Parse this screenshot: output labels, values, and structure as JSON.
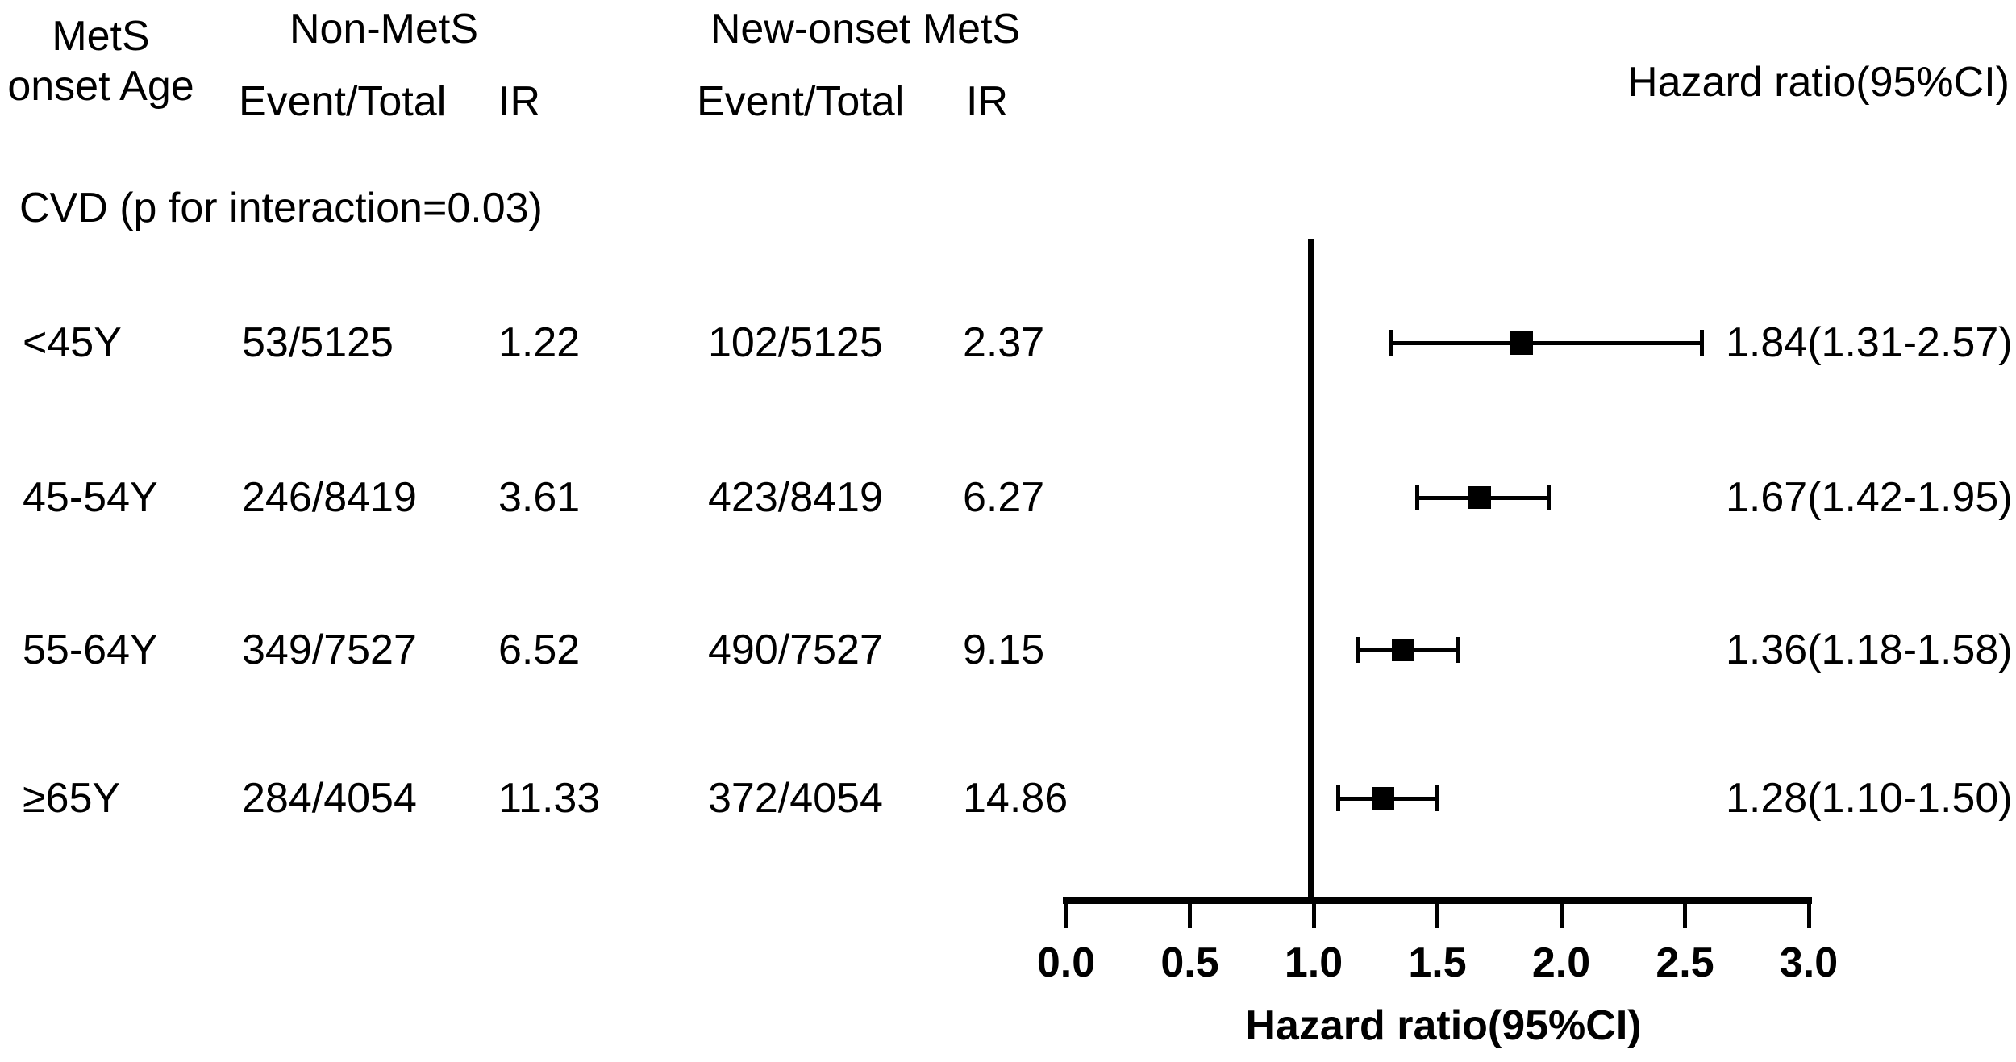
{
  "colors": {
    "foreground": "#000000",
    "background": "#ffffff"
  },
  "header": {
    "row_group_line1": "MetS",
    "row_group_line2": "onset Age",
    "group1_label": "Non-MetS",
    "group2_label": "New-onset MetS",
    "group1_event_total_label": "Event/Total",
    "group1_ir_label": "IR",
    "group2_event_total_label": "Event/Total",
    "group2_ir_label": "IR",
    "hr_column_label": "Hazard ratio(95%CI)"
  },
  "chart_data": {
    "type": "forest",
    "section_label": "CVD (p for interaction=0.03)",
    "rows": [
      {
        "age": "<45Y",
        "g1_event_total": "53/5125",
        "g1_ir": "1.22",
        "g2_event_total": "102/5125",
        "g2_ir": "2.37",
        "hr": 1.84,
        "ci_low": 1.31,
        "ci_high": 2.57,
        "hr_label": "1.84(1.31-2.57)",
        "marker_size": 29
      },
      {
        "age": "45-54Y",
        "g1_event_total": "246/8419",
        "g1_ir": "3.61",
        "g2_event_total": "423/8419",
        "g2_ir": "6.27",
        "hr": 1.67,
        "ci_low": 1.42,
        "ci_high": 1.95,
        "hr_label": "1.67(1.42-1.95)",
        "marker_size": 28
      },
      {
        "age": "55-64Y",
        "g1_event_total": "349/7527",
        "g1_ir": "6.52",
        "g2_event_total": "490/7527",
        "g2_ir": "9.15",
        "hr": 1.36,
        "ci_low": 1.18,
        "ci_high": 1.58,
        "hr_label": "1.36(1.18-1.58)",
        "marker_size": 27
      },
      {
        "age": "≥65Y",
        "g1_event_total": "284/4054",
        "g1_ir": "11.33",
        "g2_event_total": "372/4054",
        "g2_ir": "14.86",
        "hr": 1.28,
        "ci_low": 1.1,
        "ci_high": 1.5,
        "hr_label": "1.28(1.10-1.50)",
        "marker_size": 28
      }
    ],
    "axis": {
      "min": 0.0,
      "max": 3.0,
      "tick_labels": [
        "0.0",
        "0.5",
        "1.0",
        "1.5",
        "2.0",
        "2.5",
        "3.0"
      ],
      "reference_line": 1.0,
      "xlabel": "Hazard ratio(95%CI)",
      "grid": false,
      "legend": "none"
    }
  }
}
